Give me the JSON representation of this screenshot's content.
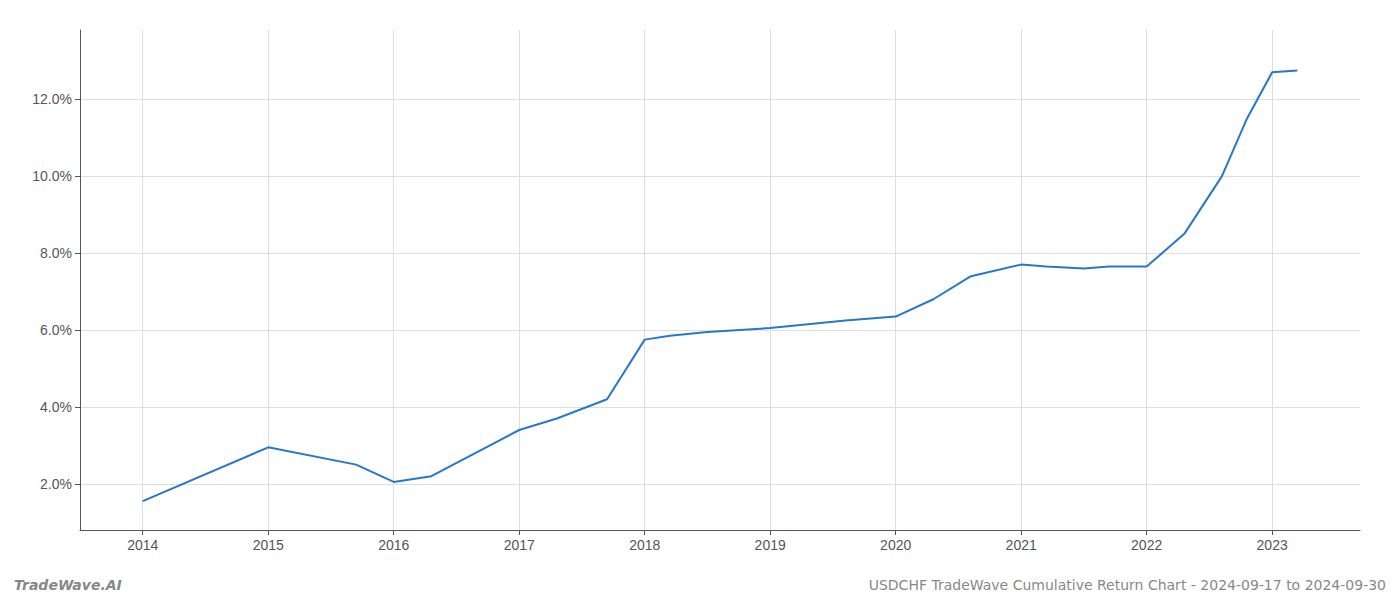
{
  "chart_data": {
    "type": "line",
    "x": [
      2014,
      2015,
      2015.7,
      2016,
      2016.3,
      2017,
      2017.3,
      2017.7,
      2018,
      2018.2,
      2018.5,
      2019,
      2019.3,
      2019.6,
      2020,
      2020.3,
      2020.6,
      2021,
      2021.2,
      2021.5,
      2021.7,
      2022,
      2022.3,
      2022.6,
      2022.8,
      2023,
      2023.2
    ],
    "values": [
      1.55,
      2.95,
      2.5,
      2.05,
      2.2,
      3.4,
      3.7,
      4.2,
      5.75,
      5.85,
      5.95,
      6.05,
      6.15,
      6.25,
      6.35,
      6.8,
      7.4,
      7.7,
      7.65,
      7.6,
      7.65,
      7.65,
      8.5,
      10.0,
      11.5,
      12.7,
      12.75
    ],
    "color": "#2878c8",
    "xlim": [
      2013.5,
      2023.7
    ],
    "xticks": [
      2014,
      2015,
      2016,
      2017,
      2018,
      2019,
      2020,
      2021,
      2022,
      2023
    ],
    "ylim": [
      0.8,
      13.8
    ],
    "yticks": [
      {
        "value": 2.0,
        "label": "2.0%"
      },
      {
        "value": 4.0,
        "label": "4.0%"
      },
      {
        "value": 6.0,
        "label": "6.0%"
      },
      {
        "value": 8.0,
        "label": "8.0%"
      },
      {
        "value": 10.0,
        "label": "10.0%"
      },
      {
        "value": 12.0,
        "label": "12.0%"
      }
    ],
    "grid": true,
    "annotations": [
      "TradeWave.AI",
      "USDCHF TradeWave Cumulative Return Chart - 2024-09-17 to 2024-09-30"
    ]
  }
}
